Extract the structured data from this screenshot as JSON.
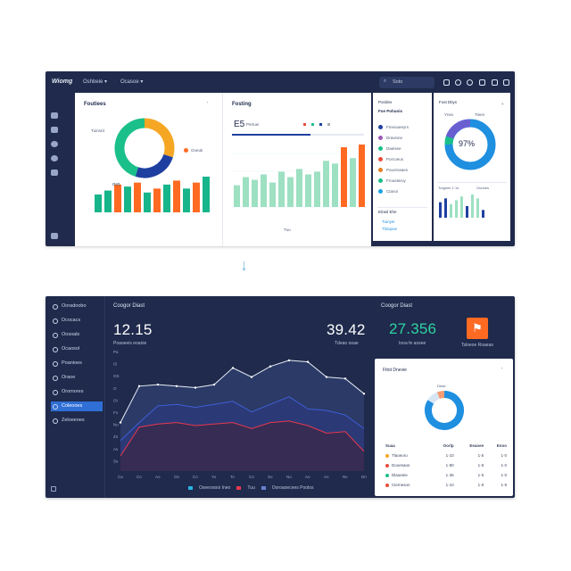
{
  "top": {
    "brand": "Wiomg",
    "nav": [
      "Oshbeie ▾",
      "Ocasoe ▾"
    ],
    "search_placeholder": "Soto",
    "panel1": {
      "title": "Foutiees",
      "donut_label": "Tuinsrd",
      "donut_side": "Ooeuk",
      "donut_segments": [
        {
          "value": 30,
          "color": "#f5a623"
        },
        {
          "value": 25,
          "color": "#1f3fa0"
        },
        {
          "value": 45,
          "color": "#1bbf8a"
        }
      ],
      "bar_label": "OrG",
      "bars": [
        {
          "value": 9,
          "color": "#17b58a"
        },
        {
          "value": 11,
          "color": "#17b58a"
        },
        {
          "value": 14,
          "color": "#ff6a22"
        },
        {
          "value": 13,
          "color": "#17b58a"
        },
        {
          "value": 15,
          "color": "#ff6a22"
        },
        {
          "value": 10,
          "color": "#17b58a"
        },
        {
          "value": 12,
          "color": "#ff6a22"
        },
        {
          "value": 14,
          "color": "#17b58a"
        },
        {
          "value": 16,
          "color": "#ff6a22"
        },
        {
          "value": 12,
          "color": "#17b58a"
        },
        {
          "value": 15,
          "color": "#ff6a22"
        },
        {
          "value": 18,
          "color": "#17b58a"
        }
      ]
    },
    "panel2": {
      "title": "Fosting",
      "stat": "E5",
      "stat_label": "Pertuei",
      "bars": [
        {
          "value": 8,
          "color": "#9de0c2"
        },
        {
          "value": 11,
          "color": "#9de0c2"
        },
        {
          "value": 10,
          "color": "#9de0c2"
        },
        {
          "value": 12,
          "color": "#9de0c2"
        },
        {
          "value": 9,
          "color": "#9de0c2"
        },
        {
          "value": 13,
          "color": "#9de0c2"
        },
        {
          "value": 11,
          "color": "#9de0c2"
        },
        {
          "value": 14,
          "color": "#9de0c2"
        },
        {
          "value": 12,
          "color": "#9de0c2"
        },
        {
          "value": 13,
          "color": "#9de0c2"
        },
        {
          "value": 17,
          "color": "#9de0c2"
        },
        {
          "value": 16,
          "color": "#9de0c2"
        },
        {
          "value": 22,
          "color": "#ff6a22"
        },
        {
          "value": 18,
          "color": "#9de0c2"
        },
        {
          "value": 23,
          "color": "#ff6a22"
        }
      ],
      "footer": "Tuu"
    },
    "panel3": {
      "title": "Pordies",
      "heading": "Foe Pohunis",
      "items": [
        {
          "label": "Fmeoueeyrs",
          "color": "#1f3fa0"
        },
        {
          "label": "Dravinne",
          "color": "#9b59b6"
        },
        {
          "label": "Daeisee",
          "color": "#1bbf8a"
        },
        {
          "label": "Porcoeus",
          "color": "#e74c3c"
        },
        {
          "label": "Pouorvaaes",
          "color": "#e67e22"
        },
        {
          "label": "Frouetaroy",
          "color": "#1bbf8a"
        },
        {
          "label": "Ctanoi",
          "color": "#1fa3e0"
        }
      ],
      "list2_title": "Elrasl Ehe",
      "list2": [
        "Tuinyei",
        "Tlsiopoe"
      ]
    },
    "panel4": {
      "title": "Fost Dtiys",
      "tabs": [
        "Ynex",
        "Tieen"
      ],
      "donut_value": "97%",
      "mini_title": "Tutgees 1·1s",
      "mini_side": "Ounoes",
      "mini_bars": [
        {
          "value": 8,
          "color": "#1f3fa0"
        },
        {
          "value": 10,
          "color": "#1f3fa0"
        },
        {
          "value": 7,
          "color": "#9de0c2"
        },
        {
          "value": 9,
          "color": "#9de0c2"
        },
        {
          "value": 11,
          "color": "#9de0c2"
        },
        {
          "value": 6,
          "color": "#1f3fa0"
        },
        {
          "value": 12,
          "color": "#9de0c2"
        },
        {
          "value": 10,
          "color": "#9de0c2"
        },
        {
          "value": 4,
          "color": "#1f3fa0"
        }
      ]
    }
  },
  "bottom": {
    "nav": [
      {
        "label": "Ooradoobo",
        "active": false
      },
      {
        "label": "Dcocacs",
        "active": false
      },
      {
        "label": "Oosoals",
        "active": false
      },
      {
        "label": "Ocaosol",
        "active": false
      },
      {
        "label": "Poanioes",
        "active": false
      },
      {
        "label": "Oraoe",
        "active": false
      },
      {
        "label": "Oromores",
        "active": false
      },
      {
        "label": "Coleooes",
        "active": true
      },
      {
        "label": "Zeloeeoes",
        "active": false
      }
    ],
    "main_title": "Coogor Diast",
    "stat1": "12.15",
    "stat1_label": "Poaoeeis eoanie",
    "stat2": "39.42",
    "stat2_label": "Tdeao ooae",
    "y_ticks": [
      "Pa",
      "IS",
      "OS",
      "O",
      "OI",
      "Fo",
      "No",
      "Zn",
      "As",
      "Ss"
    ],
    "x_ticks": [
      "Ca",
      "Co",
      "Ao",
      "On",
      "Co",
      "Yo",
      "To",
      "Co",
      "So",
      "No",
      "Ao",
      "Ao",
      "Nv",
      "Dn"
    ],
    "legend": [
      "Oseeooooi Ineo",
      "Tuu",
      "Ooroaoecees Poolos"
    ],
    "legend_colors": [
      "#2bb3e0",
      "#e6394d",
      "#6a7fd1"
    ],
    "chart_data": {
      "type": "area",
      "series": [
        {
          "values": [
            3.2,
            5.6,
            5.7,
            5.6,
            5.5,
            5.7,
            6.8,
            6.2,
            6.9,
            7.3,
            7.2,
            6.2,
            6.1,
            5.1
          ]
        },
        {
          "values": [
            2.0,
            3.2,
            4.3,
            4.4,
            4.2,
            4.4,
            4.6,
            3.9,
            4.4,
            4.9,
            4.1,
            4.0,
            3.7,
            2.8
          ]
        },
        {
          "values": [
            1.0,
            2.9,
            3.1,
            3.2,
            3.0,
            3.1,
            3.2,
            2.8,
            3.2,
            3.3,
            3.0,
            2.5,
            2.6,
            1.3
          ]
        }
      ]
    },
    "card1": {
      "value": "27.356",
      "label": "Iooa fe aosee"
    },
    "card2": {
      "label": "Tsloeoe Roaeas"
    },
    "card3_title": "Fttot Dnevie",
    "donut_tag": "Deae",
    "donut_segments": [
      {
        "value": 84,
        "color": "#1f8fe0"
      },
      {
        "value": 10,
        "color": "#d8e6f4"
      },
      {
        "value": 6,
        "color": "#f59b73"
      }
    ],
    "table_headers": [
      "Suaa",
      "Oorlp",
      "Eeaoee",
      "Enoo"
    ],
    "table_rows": [
      {
        "dot": "#f5a623",
        "name": "Tlaoeoro",
        "a": "1·10",
        "b": "1·5",
        "c": "1·0"
      },
      {
        "dot": "#e74c3c",
        "name": "Dooesaos",
        "a": "1·80",
        "b": "1·8",
        "c": "1·0"
      },
      {
        "dot": "#1bbf8a",
        "name": "Dlaoeeie",
        "a": "1·36",
        "b": "1·5",
        "c": "1·0"
      },
      {
        "dot": "#e74c3c",
        "name": "Cierneson",
        "a": "1·10",
        "b": "1·8",
        "c": "1·8"
      }
    ]
  }
}
